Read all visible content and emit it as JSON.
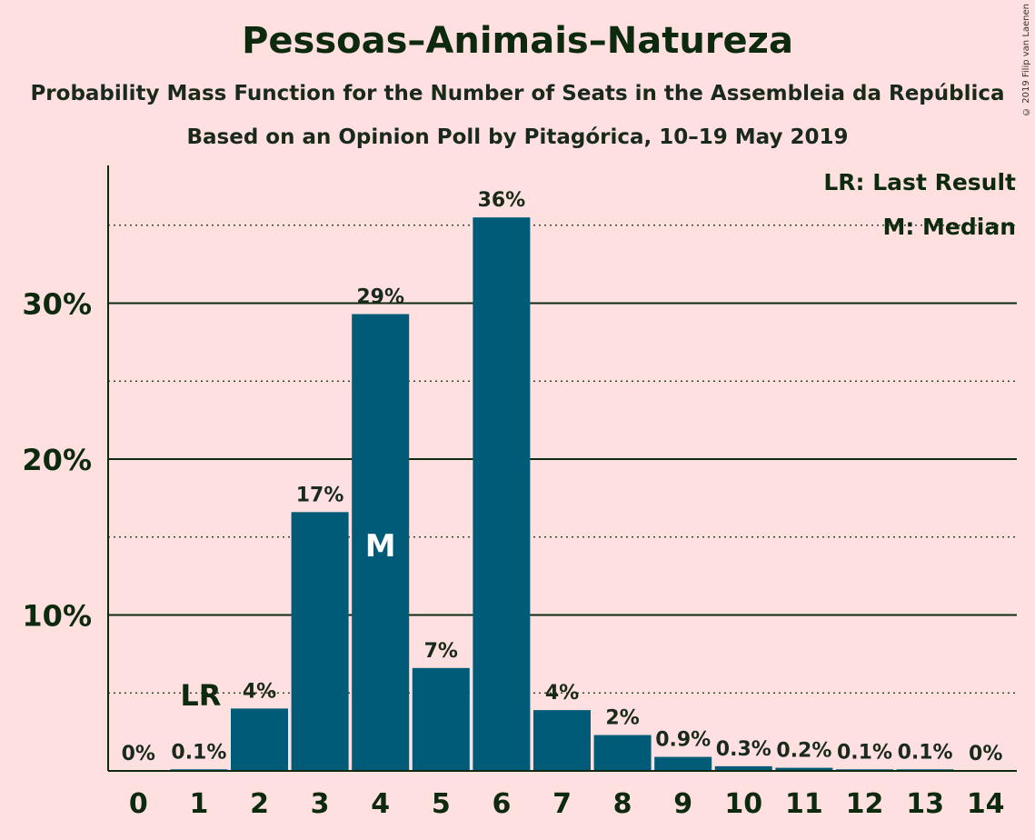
{
  "title": "Pessoas–Animais–Natureza",
  "subtitle": "Probability Mass Function for the Number of Seats in the Assembleia da República",
  "subtitle2": "Based on an Opinion Poll by Pitagórica, 10–19 May 2019",
  "copyright": "© 2019 Filip van Laenen",
  "legend": {
    "last_result": "LR: Last Result",
    "median": "M: Median"
  },
  "colors": {
    "bar": "#005b78",
    "background": "#ffe0e0",
    "text": "#0e2a0e"
  },
  "chart_data": {
    "type": "bar",
    "categories": [
      "0",
      "1",
      "2",
      "3",
      "4",
      "5",
      "6",
      "7",
      "8",
      "9",
      "10",
      "11",
      "12",
      "13",
      "14"
    ],
    "values": [
      0,
      0.1,
      4.0,
      16.6,
      29.3,
      6.6,
      35.5,
      3.9,
      2.3,
      0.9,
      0.3,
      0.2,
      0.1,
      0.1,
      0
    ],
    "value_labels": [
      "0%",
      "0.1%",
      "4%",
      "17%",
      "29%",
      "7%",
      "36%",
      "4%",
      "2%",
      "0.9%",
      "0.3%",
      "0.2%",
      "0.1%",
      "0.1%",
      "0%"
    ],
    "ylim": [
      0,
      38
    ],
    "yticks": [
      10,
      20,
      30
    ],
    "ytick_labels": [
      "10%",
      "20%",
      "30%"
    ],
    "minor_gridlines": [
      5,
      15,
      25,
      35
    ],
    "last_result_seat": "1",
    "last_result_label": "LR",
    "median_seat": "4",
    "median_label": "M",
    "legend_position": "top-right"
  }
}
